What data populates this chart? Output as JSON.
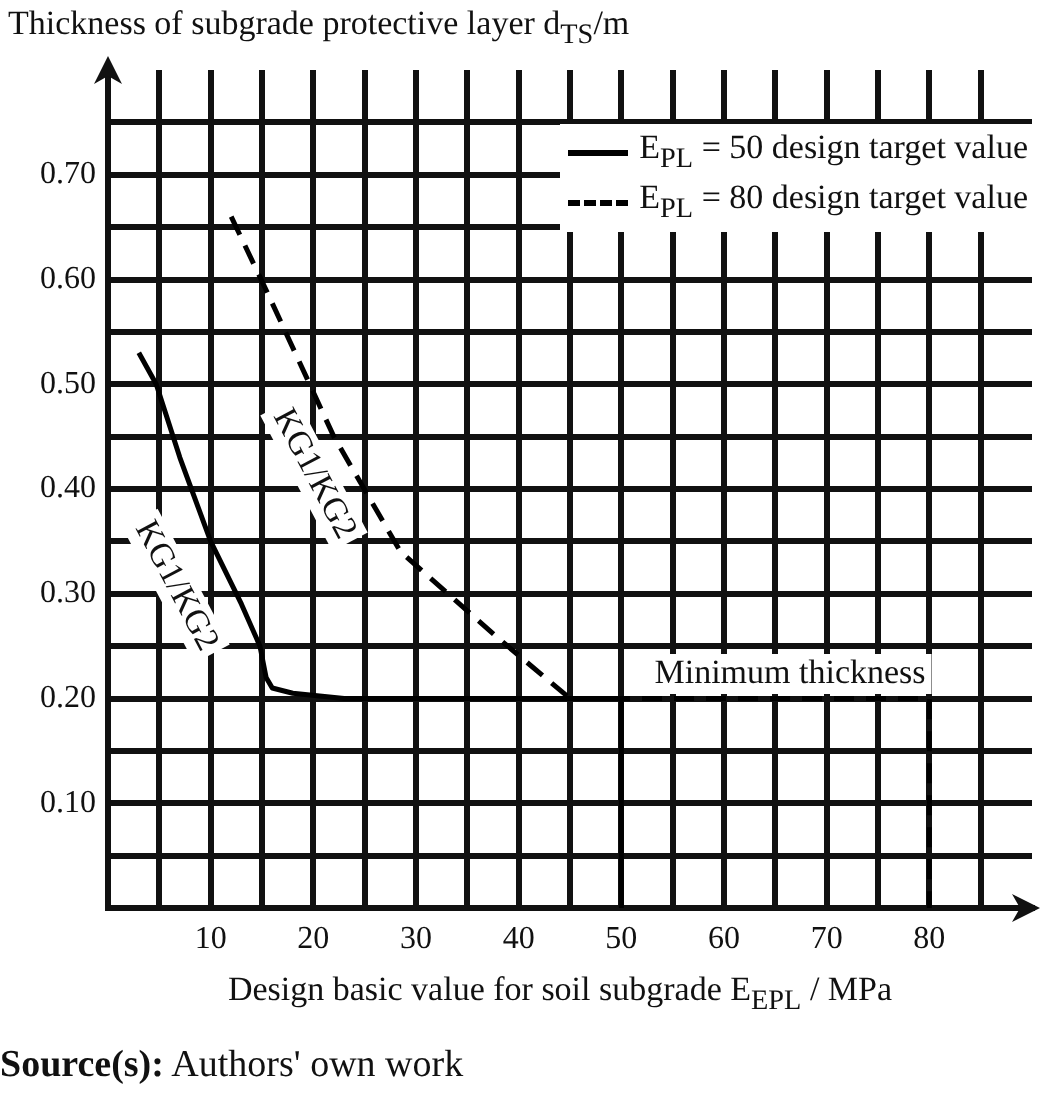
{
  "chart_data": {
    "type": "line",
    "ylabel": "Thickness of subgrade protective layer d$_{TS}$/m",
    "xlabel": "Design basic value for soil subgrade E$_{EPL}$ / MPa",
    "xlim": [
      0,
      90
    ],
    "ylim": [
      0,
      0.8
    ],
    "xticks": [
      {
        "value": 5,
        "label": null
      },
      10,
      {
        "value": 15,
        "label": null
      },
      20,
      {
        "value": 25,
        "label": null
      },
      30,
      {
        "value": 35,
        "label": null
      },
      40,
      {
        "value": 45,
        "label": null
      },
      50,
      {
        "value": 55,
        "label": null
      },
      60,
      {
        "value": 65,
        "label": null
      },
      70,
      {
        "value": 75,
        "label": null
      },
      80,
      {
        "value": 85,
        "label": null
      }
    ],
    "yticks": [
      {
        "value": 0.05,
        "label": null
      },
      {
        "value": 0.1,
        "label": "0.10"
      },
      {
        "value": 0.15,
        "label": null
      },
      {
        "value": 0.2,
        "label": "0.20"
      },
      {
        "value": 0.25,
        "label": null
      },
      {
        "value": 0.3,
        "label": "0.30"
      },
      {
        "value": 0.35,
        "label": null
      },
      {
        "value": 0.4,
        "label": "0.40"
      },
      {
        "value": 0.45,
        "label": null
      },
      {
        "value": 0.5,
        "label": "0.50"
      },
      {
        "value": 0.55,
        "label": null
      },
      {
        "value": 0.6,
        "label": "0.60"
      },
      {
        "value": 0.65,
        "label": null
      },
      {
        "value": 0.7,
        "label": "0.70"
      },
      {
        "value": 0.75,
        "label": null
      }
    ],
    "grid": true,
    "legend": "top right",
    "marker": "none",
    "series": [
      {
        "name": "E$_{PL}$ = 50 design target value",
        "color": "#000000",
        "line_style": "solid",
        "x": [
          3,
          4.7,
          7,
          10,
          13,
          14.8,
          15.4,
          16,
          18,
          23,
          50,
          50
        ],
        "values": [
          0.53,
          0.5,
          0.43,
          0.35,
          0.29,
          0.25,
          0.22,
          0.21,
          0.205,
          0.2,
          0.2,
          0
        ]
      },
      {
        "name": "E$_{PL}$ = 80 design target value",
        "color": "#000000",
        "line_style": "dashed",
        "x": [
          12,
          15.4,
          22,
          28.5,
          38.2,
          45,
          80,
          80
        ],
        "values": [
          0.66,
          0.59,
          0.45,
          0.34,
          0.256,
          0.2,
          0.2,
          0
        ]
      }
    ],
    "annotations": [
      "KG1/KG2",
      "KG1/KG2",
      "Minimum thickness",
      "Source(s): Authors' own work"
    ]
  }
}
